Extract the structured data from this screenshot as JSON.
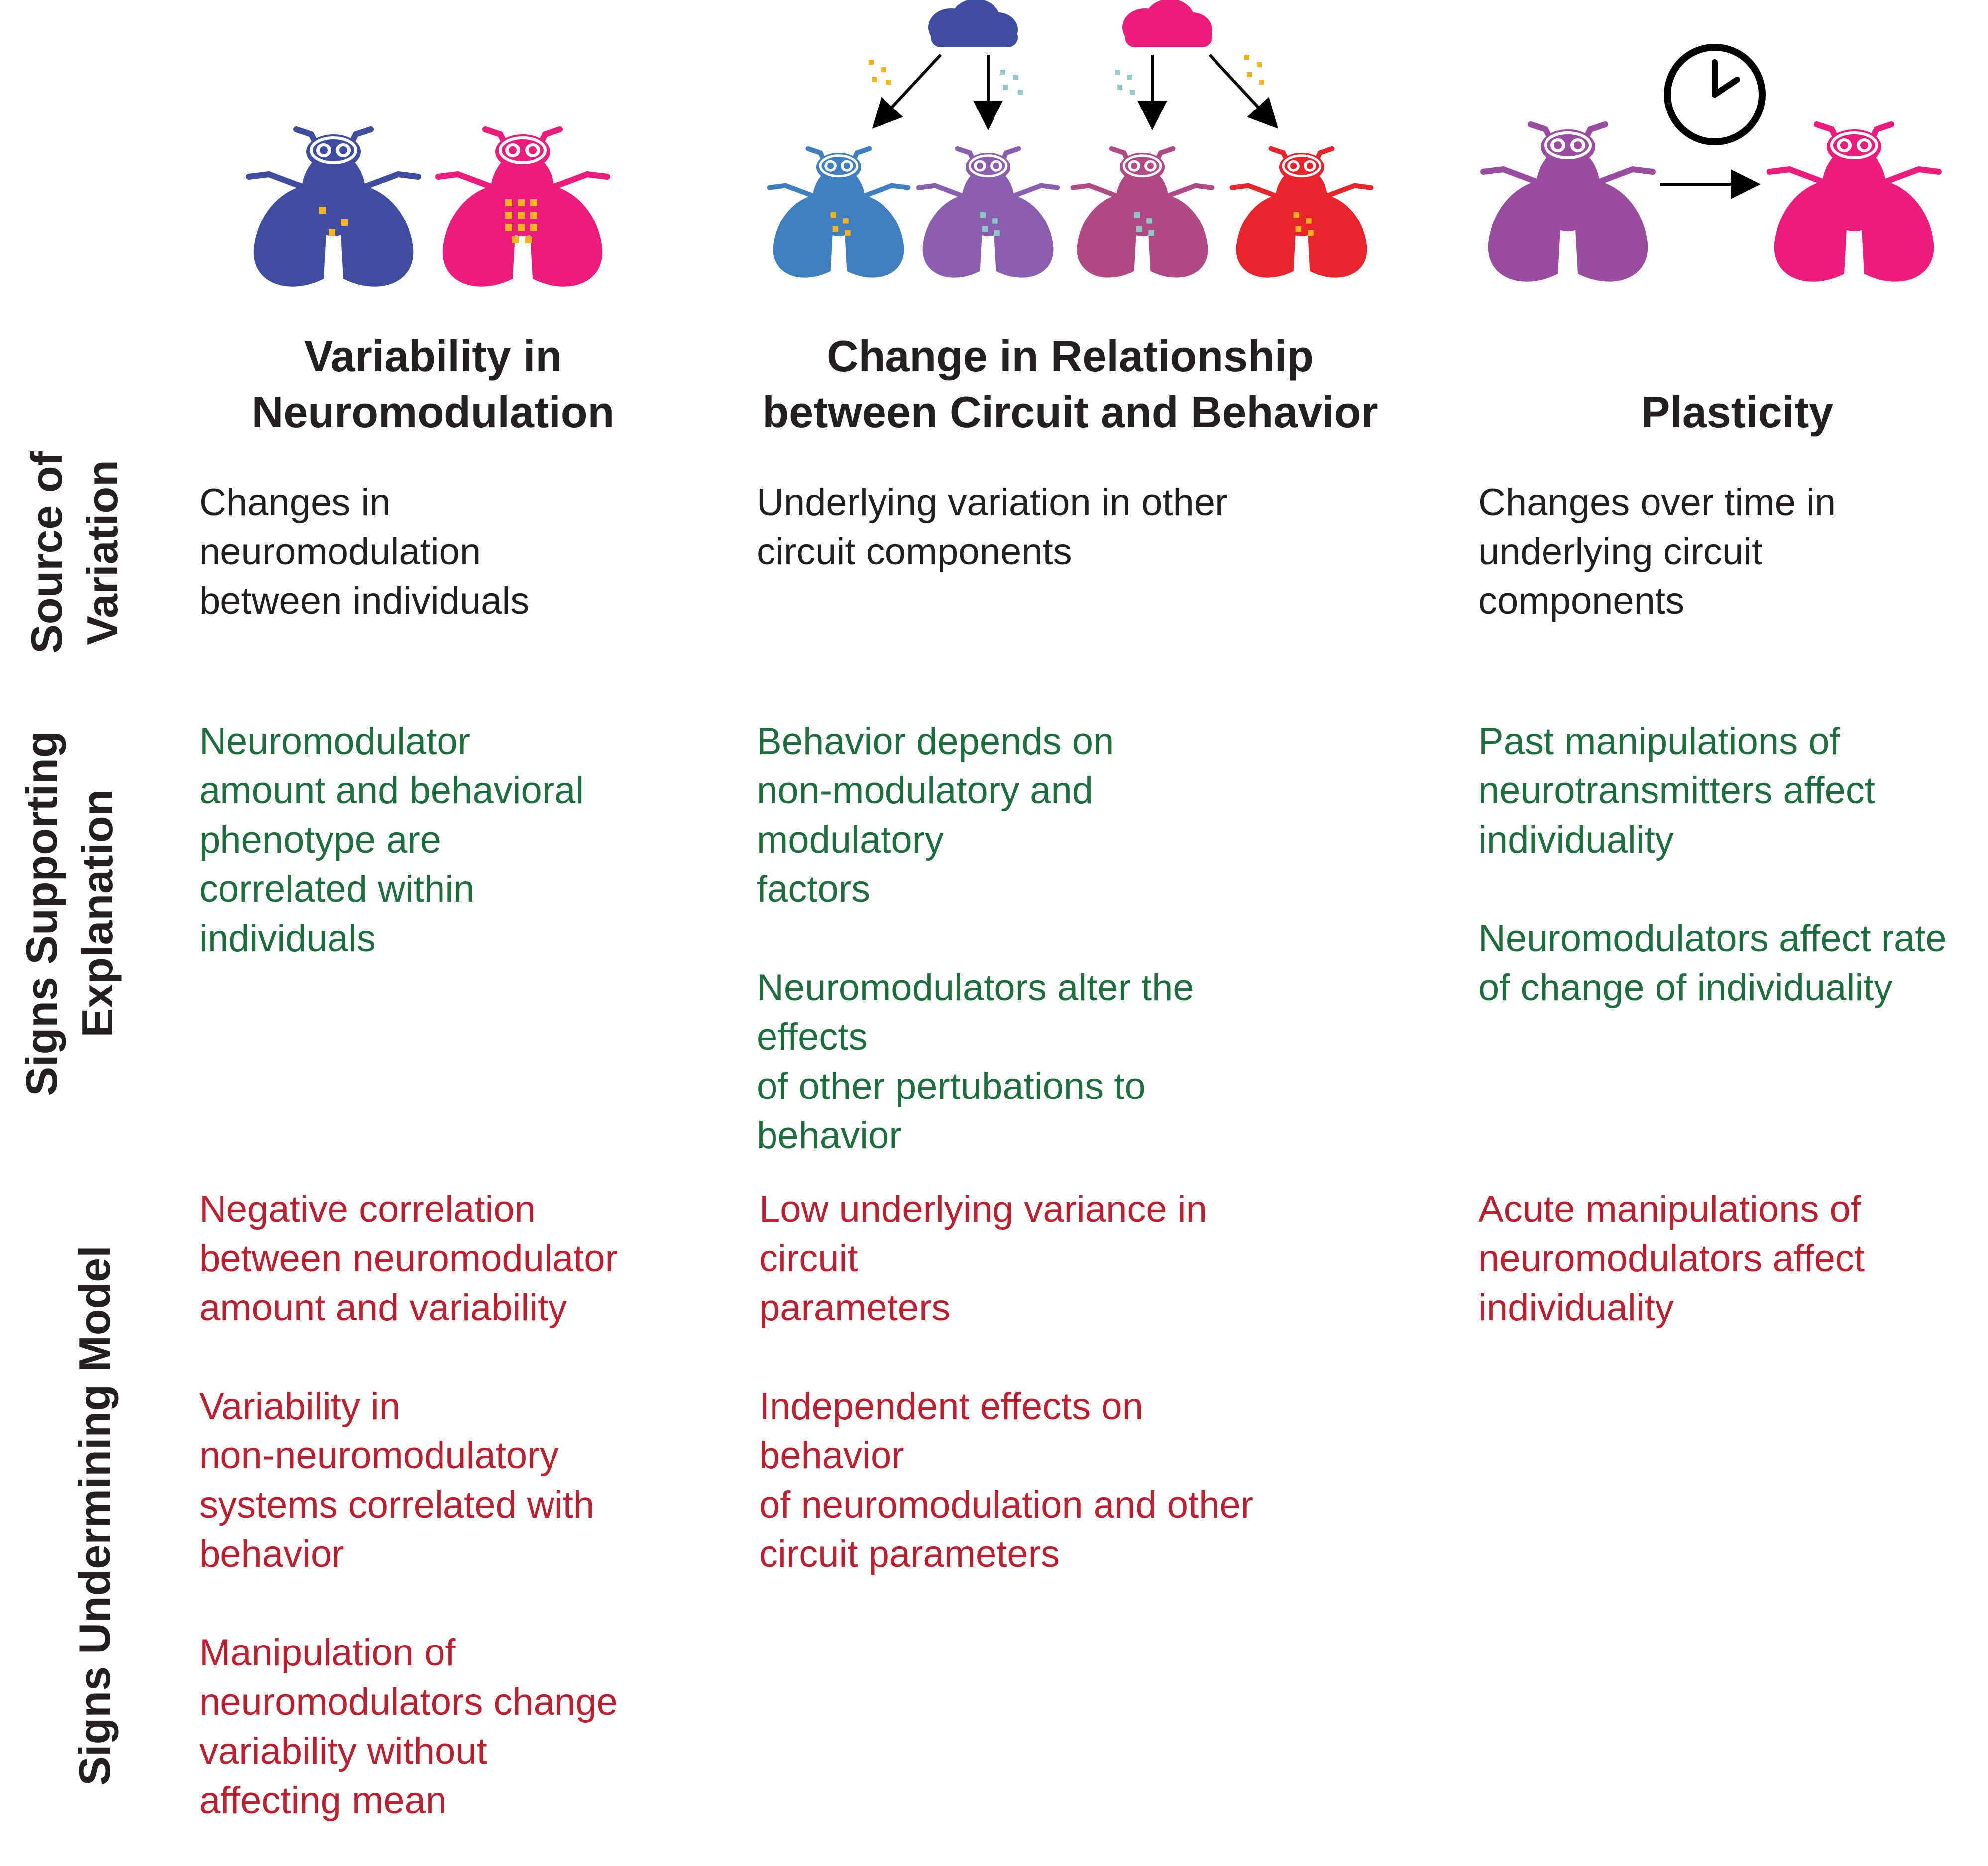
{
  "colors": {
    "text": "#231f20",
    "support": "#1d6e3f",
    "undermine": "#be1e2d",
    "fly_dark_blue": "#3f4da0",
    "fly_pink": "#ec1c7c",
    "fly_light_blue": "#3f7fc0",
    "fly_purple": "#8a5eaf",
    "fly_mauve": "#b04a84",
    "fly_red": "#e9232a",
    "fly_plum": "#9a4da0",
    "dots_yellow": "#f6b31b",
    "dots_teal": "#8ecbc4"
  },
  "columns": [
    {
      "title": "Variability in\nNeuromodulation",
      "source": [
        "Changes in\nneuromodulation\nbetween individuals"
      ],
      "supporting": [
        "Neuromodulator\namount and behavioral\nphenotype are\ncorrelated within\nindividuals"
      ],
      "undermining": [
        "Negative correlation\nbetween neuromodulator\namount and variability",
        "Variability in\nnon-neuromodulatory\nsystems correlated with\nbehavior",
        "Manipulation of\nneuromodulators change\nvariability without\naffecting mean"
      ]
    },
    {
      "title": "Change in Relationship\nbetween Circuit and Behavior",
      "source": [
        "Underlying variation in other\ncircuit components"
      ],
      "supporting": [
        "Behavior depends on\nnon-modulatory and modulatory\nfactors",
        "Neuromodulators alter the effects\nof other pertubations to behavior"
      ],
      "undermining": [
        "Low underlying variance in circuit\nparameters",
        "Independent effects on behavior\nof neuromodulation and other\ncircuit parameters"
      ]
    },
    {
      "title": "Plasticity",
      "source": [
        "Changes over time in\nunderlying circuit\ncomponents"
      ],
      "supporting": [
        "Past manipulations of\nneurotransmitters affect\nindividuality",
        "Neuromodulators affect rate\nof change of individuality"
      ],
      "undermining": [
        "Acute manipulations of\nneuromodulators affect\nindividuality"
      ]
    }
  ],
  "rows": [
    "Source of\nVariation",
    "Signs Supporting\nExplanation",
    "Signs Undermining Model"
  ]
}
